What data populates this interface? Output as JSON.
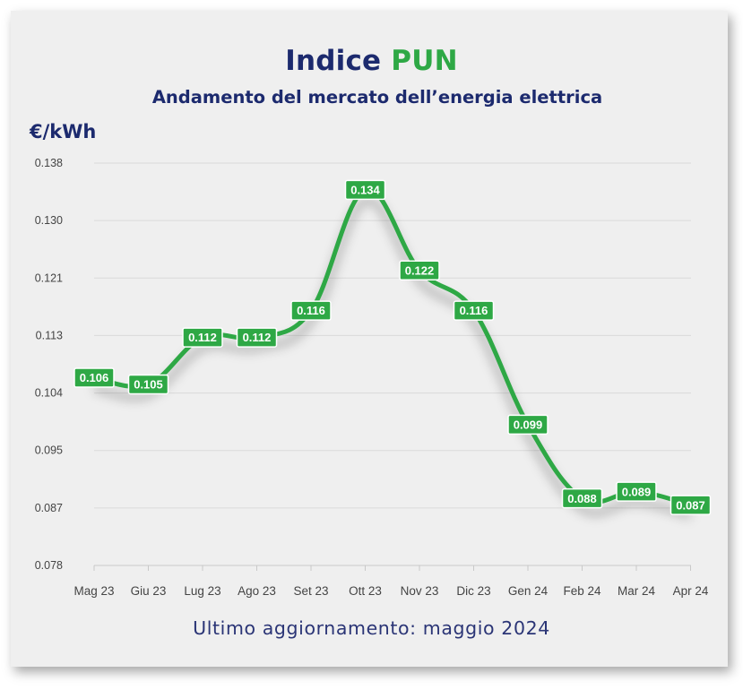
{
  "header": {
    "title_main": "Indice",
    "title_accent": "PUN",
    "subtitle": "Andamento del mercato dell’energia elettrica",
    "unit": "€/kWh"
  },
  "footer": {
    "note": "Ultimo aggiornamento: maggio 2024"
  },
  "colors": {
    "line": "#2ea845",
    "title": "#1c2a6e",
    "accent": "#2ea845",
    "background": "#efefef"
  },
  "chart_data": {
    "type": "line",
    "title": "",
    "xlabel": "",
    "ylabel": "€/kWh",
    "categories": [
      "Mag 23",
      "Giu 23",
      "Lug 23",
      "Ago 23",
      "Set 23",
      "Ott 23",
      "Nov 23",
      "Dic 23",
      "Gen 24",
      "Feb 24",
      "Mar 24",
      "Apr 24"
    ],
    "series": [
      {
        "values": [
          0.106,
          0.105,
          0.112,
          0.112,
          0.116,
          0.134,
          0.122,
          0.116,
          0.099,
          0.088,
          0.089,
          0.087
        ]
      }
    ],
    "y_ticks": [
      "0.078",
      "0.087",
      "0.095",
      "0.104",
      "0.113",
      "0.121",
      "0.130",
      "0.138"
    ],
    "ylim": [
      0.078,
      0.138
    ],
    "grid": true,
    "legend": "none",
    "data_labels": true
  }
}
